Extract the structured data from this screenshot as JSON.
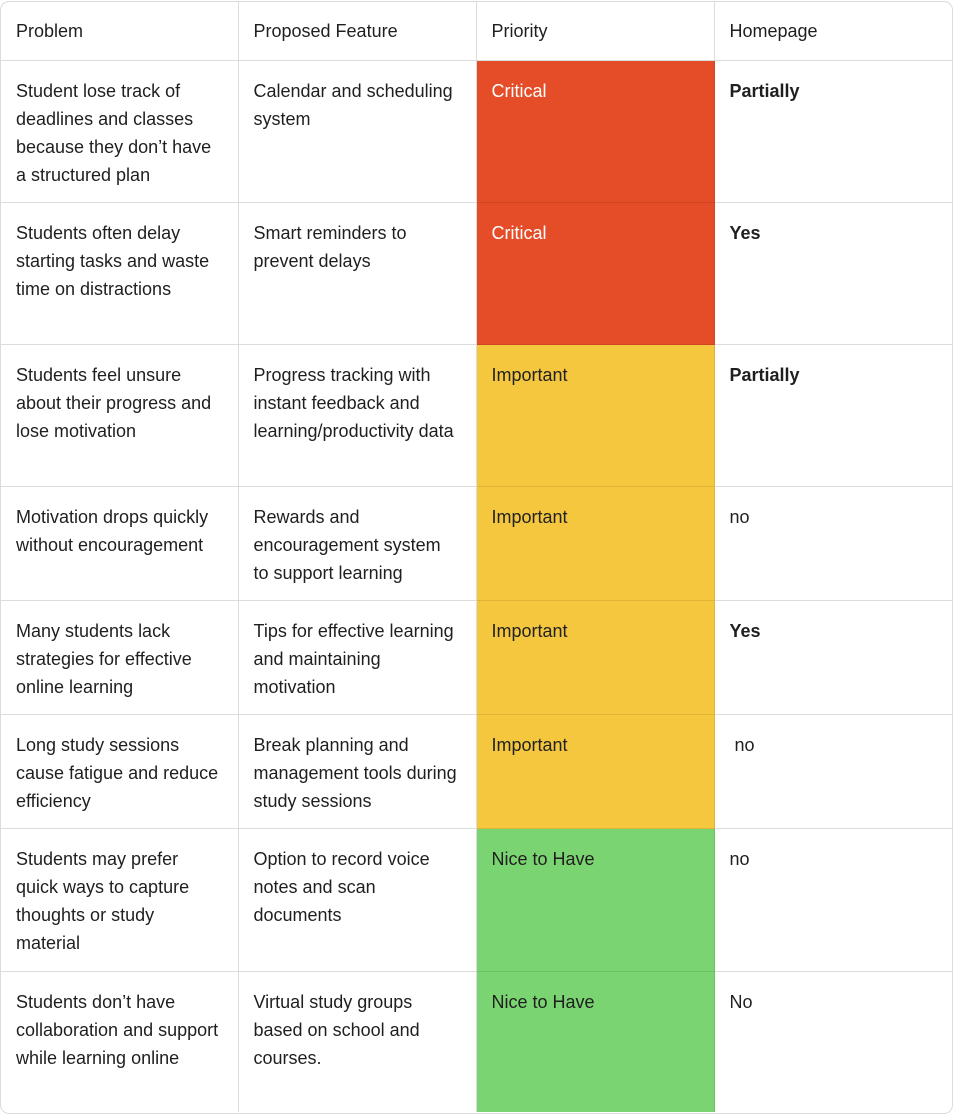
{
  "headers": {
    "problem": "Problem",
    "feature": "Proposed Feature",
    "priority": "Priority",
    "homepage": "Homepage"
  },
  "rows": [
    {
      "problem": "Student lose track of deadlines and classes because they don’t have a structured plan",
      "feature": "Calendar and scheduling system",
      "priority": "Critical",
      "homepage": "Partially"
    },
    {
      "problem": "Students often delay starting tasks and waste time on distractions",
      "feature": "Smart reminders to prevent delays",
      "priority": "Critical",
      "homepage": "Yes"
    },
    {
      "problem": "Students feel unsure about their progress and lose motivation",
      "feature": "Progress tracking with instant feedback and learning/productivity data",
      "priority": "Important",
      "homepage": "Partially"
    },
    {
      "problem": "Motivation drops quickly without encouragement",
      "feature": "Rewards and encouragement system to support learning",
      "priority": "Important",
      "homepage": "no"
    },
    {
      "problem": "Many students lack strategies for effective online learning",
      "feature": "Tips for effective learning and maintaining motivation",
      "priority": "Important",
      "homepage": "Yes"
    },
    {
      "problem": "Long study sessions cause fatigue and reduce efficiency",
      "feature": "Break planning and management tools during study sessions",
      "priority": "Important",
      "homepage": " no"
    },
    {
      "problem": "Students may prefer quick ways to capture thoughts or study material",
      "feature": "Option to record voice notes and scan documents",
      "priority": "Nice to Have",
      "homepage": "no"
    },
    {
      "problem": "Students don’t have collaboration and support while learning online",
      "feature": "Virtual study groups based on school and courses.",
      "priority": "Nice to Have",
      "homepage": "No"
    }
  ],
  "colors": {
    "critical": "#e44d27",
    "important": "#f4c73f",
    "nice_to_have": "#7bd472",
    "border": "#dcdcdc"
  }
}
